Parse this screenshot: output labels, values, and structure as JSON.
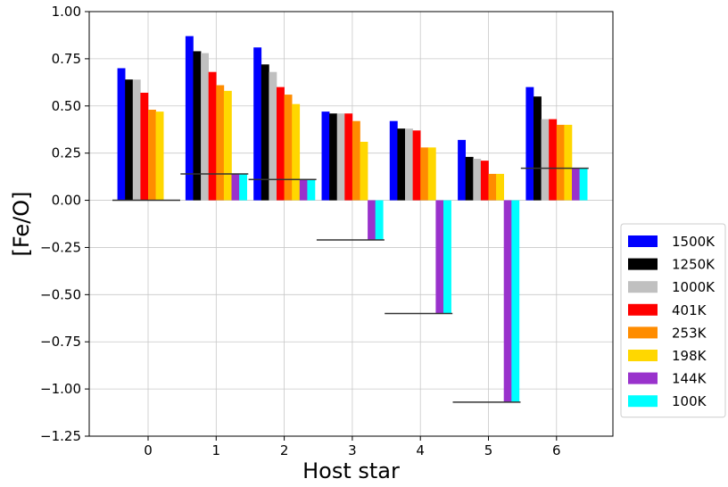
{
  "chart_data": {
    "type": "bar",
    "xlabel": "Host star",
    "ylabel": "[Fe/O]",
    "ylim": [
      -1.25,
      1.0
    ],
    "y_ticks": [
      "1.00",
      "0.75",
      "0.50",
      "0.25",
      "0.00",
      "−0.25",
      "−0.50",
      "−0.75",
      "−1.00",
      "−1.25"
    ],
    "categories": [
      "0",
      "1",
      "2",
      "3",
      "4",
      "5",
      "6"
    ],
    "grid": true,
    "legend_position": "right",
    "series": [
      {
        "name": "1500K",
        "color": "#0000ff",
        "values": [
          0.7,
          0.87,
          0.81,
          0.47,
          0.42,
          0.32,
          0.6
        ]
      },
      {
        "name": "1250K",
        "color": "#000000",
        "values": [
          0.64,
          0.79,
          0.72,
          0.46,
          0.38,
          0.23,
          0.55
        ]
      },
      {
        "name": "1000K",
        "color": "#c0c0c0",
        "values": [
          0.64,
          0.78,
          0.68,
          0.46,
          0.38,
          0.22,
          0.43
        ]
      },
      {
        "name": "401K",
        "color": "#ff0000",
        "values": [
          0.57,
          0.68,
          0.6,
          0.46,
          0.37,
          0.21,
          0.43
        ]
      },
      {
        "name": "253K",
        "color": "#ff8c00",
        "values": [
          0.48,
          0.61,
          0.56,
          0.42,
          0.28,
          0.14,
          0.4
        ]
      },
      {
        "name": "198K",
        "color": "#ffd700",
        "values": [
          0.47,
          0.58,
          0.51,
          0.31,
          0.28,
          0.14,
          0.4
        ]
      },
      {
        "name": "144K",
        "color": "#9932cc",
        "values": [
          0.0,
          0.14,
          0.11,
          -0.21,
          -0.6,
          -1.07,
          0.17
        ]
      },
      {
        "name": "100K",
        "color": "#00ffff",
        "values": [
          0.0,
          0.14,
          0.11,
          -0.21,
          -0.6,
          -1.07,
          0.17
        ]
      }
    ],
    "reference_lines": [
      0.0,
      0.14,
      0.11,
      -0.21,
      -0.6,
      -1.07,
      0.17
    ]
  }
}
